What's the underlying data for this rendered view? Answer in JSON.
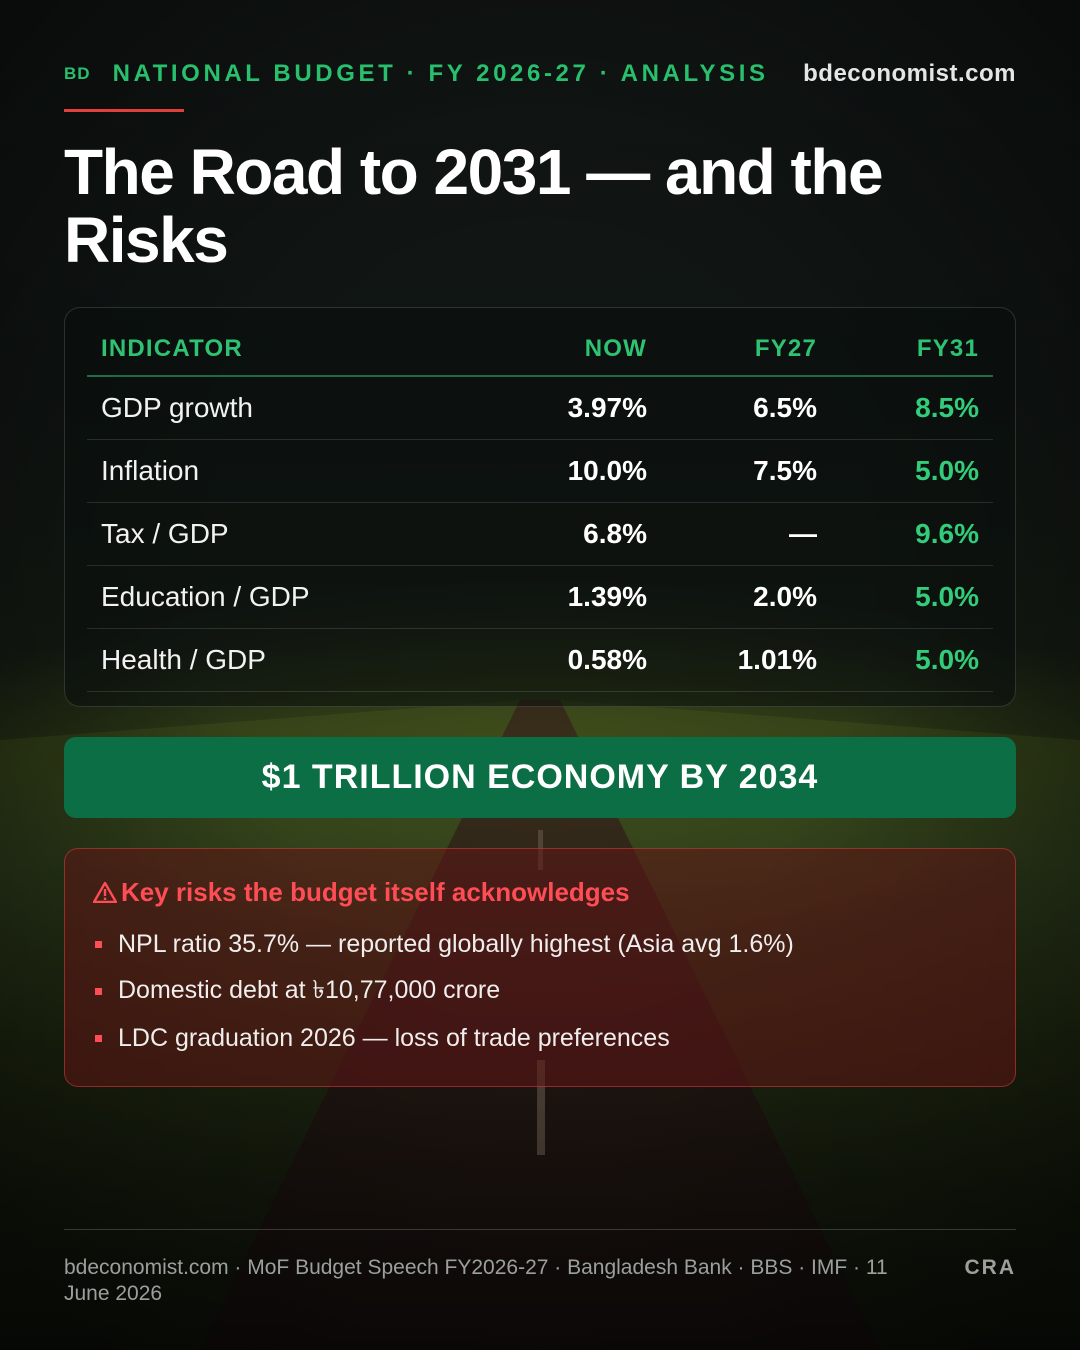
{
  "header": {
    "badge": "BD",
    "kicker": "NATIONAL BUDGET · FY 2026-27 · ANALYSIS",
    "site": "bdeconomist.com"
  },
  "title": "The Road to 2031 — and the Risks",
  "table": {
    "columns": [
      "INDICATOR",
      "NOW",
      "FY27",
      "FY31"
    ],
    "rows": [
      {
        "indicator": "GDP growth",
        "now": "3.97%",
        "fy27": "6.5%",
        "fy31": "8.5%"
      },
      {
        "indicator": "Inflation",
        "now": "10.0%",
        "fy27": "7.5%",
        "fy31": "5.0%"
      },
      {
        "indicator": "Tax / GDP",
        "now": "6.8%",
        "fy27": "—",
        "fy31": "9.6%"
      },
      {
        "indicator": "Education / GDP",
        "now": "1.39%",
        "fy27": "2.0%",
        "fy31": "5.0%"
      },
      {
        "indicator": "Health / GDP",
        "now": "0.58%",
        "fy27": "1.01%",
        "fy31": "5.0%"
      }
    ]
  },
  "banner": "$1 TRILLION ECONOMY BY 2034",
  "risks": {
    "icon": "warning-icon",
    "title": "Key risks the budget itself acknowledges",
    "items": [
      "NPL ratio 35.7% — reported globally highest (Asia avg 1.6%)",
      "Domestic debt at ৳10,77,000 crore",
      "LDC graduation 2026 — loss of trade preferences"
    ]
  },
  "footer": {
    "sources": "bdeconomist.com · MoF Budget Speech FY2026-27 · Bangladesh Bank · BBS · IMF · 11 June 2026",
    "mark": "CRA"
  },
  "colors": {
    "accent_green": "#29c06d",
    "banner_green": "#0c6e45",
    "risk_red": "#ff4d56",
    "rule_red": "#e0403a"
  }
}
